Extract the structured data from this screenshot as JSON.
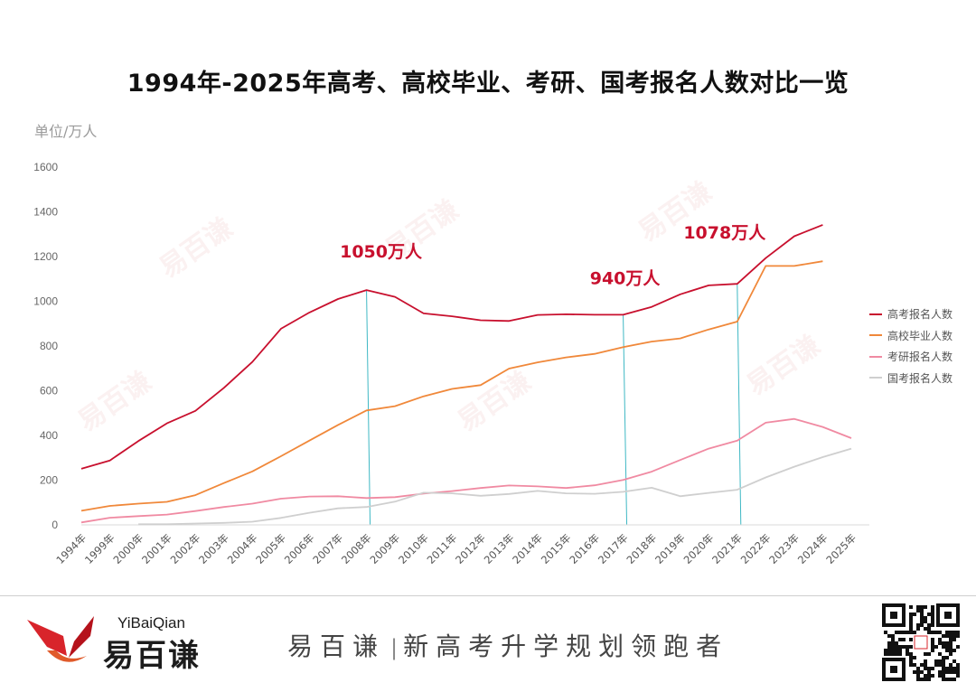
{
  "title": "1994年-2025年高考、高校毕业、考研、国考报名人数对比一览",
  "unit_label": "单位/万人",
  "chart_data": {
    "type": "line",
    "categories": [
      "1994年",
      "1999年",
      "2000年",
      "2001年",
      "2002年",
      "2003年",
      "2004年",
      "2005年",
      "2006年",
      "2007年",
      "2008年",
      "2009年",
      "2010年",
      "2011年",
      "2012年",
      "2013年",
      "2014年",
      "2015年",
      "2016年",
      "2017年",
      "2018年",
      "2019年",
      "2020年",
      "2021年",
      "2022年",
      "2023年",
      "2024年",
      "2025年"
    ],
    "ylim": [
      0,
      1600
    ],
    "yticks": [
      0,
      200,
      400,
      600,
      800,
      1000,
      1200,
      1400,
      1600
    ],
    "grid": false,
    "legend_position": "right",
    "series": [
      {
        "name": "高考报名人数",
        "color": "#c8102e",
        "values": [
          251,
          288,
          375,
          454,
          510,
          613,
          729,
          877,
          950,
          1010,
          1050,
          1020,
          946,
          933,
          915,
          912,
          939,
          942,
          940,
          940,
          975,
          1031,
          1071,
          1078,
          1193,
          1291,
          1342,
          null
        ]
      },
      {
        "name": "高校毕业人数",
        "color": "#f0883a",
        "values": [
          63,
          85,
          95,
          103,
          133,
          187,
          239,
          307,
          377,
          447,
          512,
          531,
          575,
          608,
          625,
          699,
          727,
          749,
          765,
          795,
          820,
          834,
          874,
          909,
          1158,
          1158,
          1179,
          null
        ]
      },
      {
        "name": "考研报名人数",
        "color": "#f08aa2",
        "values": [
          11,
          32,
          39,
          46,
          62,
          80,
          95,
          117,
          127,
          128,
          120,
          124,
          140,
          151,
          165,
          176,
          172,
          165,
          177,
          201,
          238,
          290,
          341,
          377,
          457,
          474,
          438,
          388
        ]
      },
      {
        "name": "国考报名人数",
        "color": "#cfcfcf",
        "values": [
          null,
          null,
          3,
          3,
          6,
          9,
          14,
          31,
          54,
          74,
          80,
          104,
          144,
          141,
          130,
          138,
          152,
          141,
          139,
          148,
          166,
          128,
          143,
          157,
          212,
          260,
          303,
          341
        ]
      }
    ],
    "annotations": [
      {
        "text": "1050万人",
        "category": "2008年",
        "value": 1050
      },
      {
        "text": "940万人",
        "category": "2017年",
        "value": 940
      },
      {
        "text": "1078万人",
        "category": "2021年",
        "value": 1078
      }
    ],
    "annotation_color": "#c8102e",
    "marker_line_color": "#3fb8c4"
  },
  "branding": {
    "logo_en": "YiBaiQian",
    "logo_cn": "易百谦",
    "slogan_brand": "易百谦",
    "slogan_sep": "|",
    "slogan_text": "新高考升学规划领跑者",
    "watermark_en": "YiBaiQian",
    "watermark_cn": "易百谦"
  }
}
